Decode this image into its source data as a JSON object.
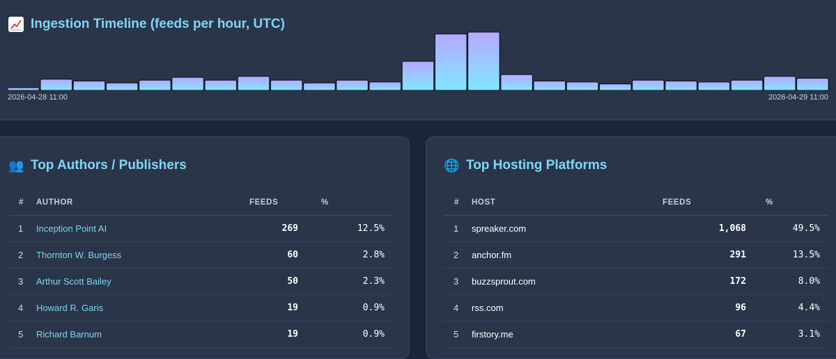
{
  "timeline": {
    "title": "Ingestion Timeline (feeds per hour, UTC)",
    "icon": "chart-up-icon",
    "start_label": "2026-04-28 11:00",
    "end_label": "2026-04-29 11:00"
  },
  "chart_data": {
    "type": "bar",
    "values": [
      3,
      12,
      10,
      8,
      11,
      14,
      11,
      15,
      11,
      8,
      11,
      9,
      31,
      60,
      62,
      17,
      10,
      9,
      7,
      11,
      10,
      9,
      11,
      15,
      13
    ],
    "bar_color_top": "#b6a7ff",
    "bar_color_bottom": "#7fe8ff",
    "ylim": [
      0,
      65
    ]
  },
  "authors": {
    "title": "Top Authors / Publishers",
    "icon": "people-icon",
    "columns": [
      "#",
      "AUTHOR",
      "FEEDS",
      "%"
    ],
    "rows": [
      {
        "rank": "1",
        "name": "Inception Point AI",
        "feeds": "269",
        "pct": "12.5%"
      },
      {
        "rank": "2",
        "name": "Thornton W. Burgess",
        "feeds": "60",
        "pct": "2.8%"
      },
      {
        "rank": "3",
        "name": "Arthur Scott Bailey",
        "feeds": "50",
        "pct": "2.3%"
      },
      {
        "rank": "4",
        "name": "Howard R. Garis",
        "feeds": "19",
        "pct": "0.9%"
      },
      {
        "rank": "5",
        "name": "Richard Barnum",
        "feeds": "19",
        "pct": "0.9%"
      }
    ]
  },
  "hosts": {
    "title": "Top Hosting Platforms",
    "icon": "globe-icon",
    "columns": [
      "#",
      "HOST",
      "FEEDS",
      "%"
    ],
    "rows": [
      {
        "rank": "1",
        "name": "spreaker.com",
        "feeds": "1,068",
        "pct": "49.5%"
      },
      {
        "rank": "2",
        "name": "anchor.fm",
        "feeds": "291",
        "pct": "13.5%"
      },
      {
        "rank": "3",
        "name": "buzzsprout.com",
        "feeds": "172",
        "pct": "8.0%"
      },
      {
        "rank": "4",
        "name": "rss.com",
        "feeds": "96",
        "pct": "4.4%"
      },
      {
        "rank": "5",
        "name": "firstory.me",
        "feeds": "67",
        "pct": "3.1%"
      }
    ]
  }
}
